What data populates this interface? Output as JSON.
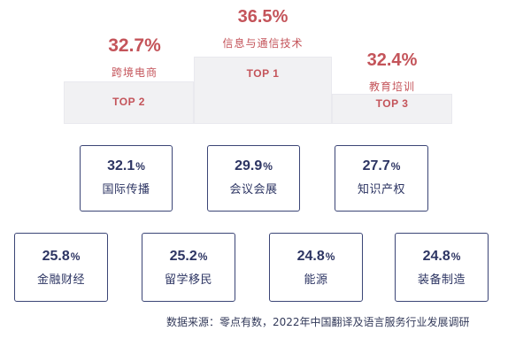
{
  "chart_data": {
    "type": "table",
    "unit": "%",
    "podium": [
      {
        "rank": "TOP 1",
        "category": "信息与通信技术",
        "value": 36.5
      },
      {
        "rank": "TOP 2",
        "category": "跨境电商",
        "value": 32.7
      },
      {
        "rank": "TOP 3",
        "category": "教育培训",
        "value": 32.4
      }
    ],
    "items": [
      {
        "category": "国际传播",
        "value": 32.1
      },
      {
        "category": "会议会展",
        "value": 29.9
      },
      {
        "category": "知识产权",
        "value": 27.7
      },
      {
        "category": "金融财经",
        "value": 25.8
      },
      {
        "category": "留学移民",
        "value": 25.2
      },
      {
        "category": "能源",
        "value": 24.8
      },
      {
        "category": "装备制造",
        "value": 24.8
      }
    ],
    "source": "数据来源：零点有数，2022年中国翻译及语言服务行业发展调研"
  },
  "colors": {
    "accent": "#c4545a",
    "box_border": "#3b4576",
    "podium": "#f1f1f3"
  }
}
